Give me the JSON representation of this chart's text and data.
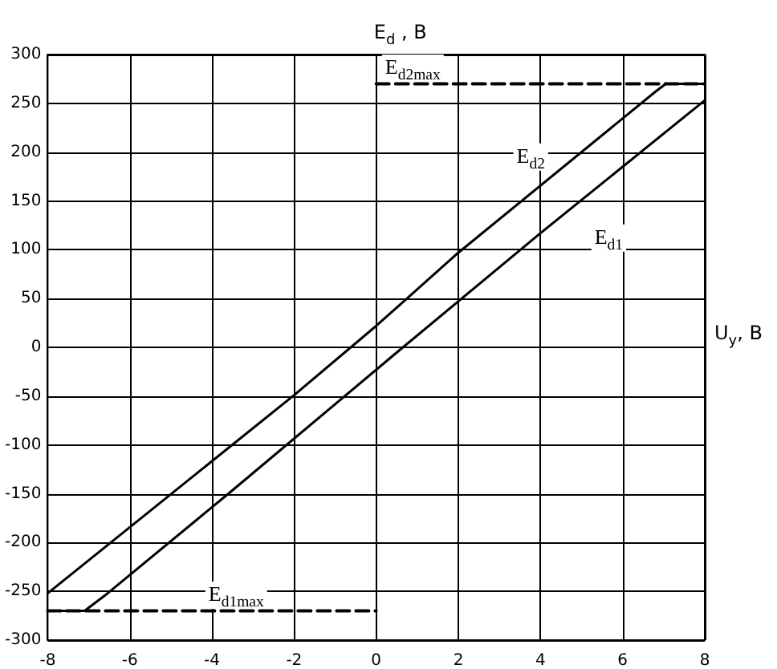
{
  "chart_data": {
    "type": "line",
    "xlabel": "U$_{y}$, B",
    "ylabel": "E$_{d}$ , B",
    "xlim": [
      -8,
      8
    ],
    "xticks": [
      -8,
      -6,
      -4,
      -2,
      0,
      2,
      4,
      6,
      8
    ],
    "ylim": [
      -300,
      300
    ],
    "yticks": [
      -300,
      -250,
      -200,
      -150,
      -100,
      -50,
      0,
      50,
      100,
      150,
      200,
      250,
      300
    ],
    "grid": true,
    "legend": false,
    "marker": "none",
    "series": [
      {
        "name": "E$_{d2}$",
        "color": "#000000",
        "line_style": "solid",
        "x": [
          -8,
          -2,
          0,
          2,
          6.8,
          7.05,
          8
        ],
        "values": [
          -252,
          -49,
          22,
          97,
          262,
          270,
          270
        ]
      },
      {
        "name": "E$_{d1}$",
        "color": "#000000",
        "line_style": "solid",
        "x": [
          -7.8,
          -7.1,
          -6.6,
          -3.6,
          0.65,
          4,
          8
        ],
        "values": [
          -270,
          -270,
          -254,
          -150,
          0,
          117,
          253
        ]
      },
      {
        "name": "E$_{d2max}$",
        "color": "#000000",
        "line_style": "dashed",
        "x": [
          0,
          8
        ],
        "values": [
          270,
          270
        ]
      },
      {
        "name": "E$_{d1max}$",
        "color": "#000000",
        "line_style": "dashed",
        "x": [
          -8,
          0
        ],
        "values": [
          -270,
          -270
        ]
      }
    ]
  }
}
